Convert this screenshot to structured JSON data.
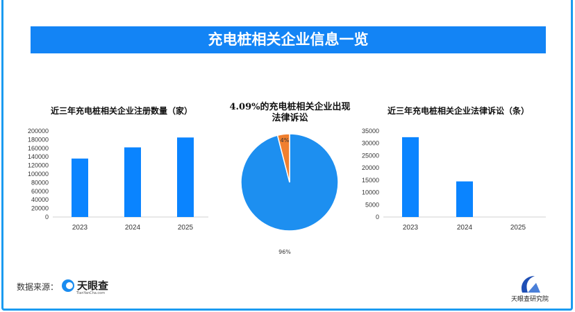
{
  "banner_title": "充电桩相关企业信息一览",
  "colors": {
    "bar": "#0a84ff",
    "pie_main": "#1d8ff0",
    "pie_minor": "#f07f2e",
    "banner": "#1384f5"
  },
  "chart_data": [
    {
      "type": "bar",
      "title": "近三年充电桩相关企业注册数量（家）",
      "categories": [
        "2023",
        "2024",
        "2025"
      ],
      "values": [
        136000,
        162000,
        185000
      ],
      "ylim": [
        0,
        200000
      ],
      "yticks": [
        "0",
        "20000",
        "40000",
        "60000",
        "80000",
        "100000",
        "120000",
        "140000",
        "160000",
        "180000",
        "200000"
      ]
    },
    {
      "type": "pie",
      "title": "4.09%的充电桩相关企业出现法律诉讼",
      "values": [
        96,
        4
      ],
      "labels": [
        "96%",
        "4%"
      ]
    },
    {
      "type": "bar",
      "title": "近三年充电桩相关企业法律诉讼（条）",
      "categories": [
        "2023",
        "2024",
        "2025"
      ],
      "values": [
        32500,
        14500,
        0
      ],
      "ylim": [
        0,
        35000
      ],
      "yticks": [
        "0",
        "5000",
        "10000",
        "15000",
        "20000",
        "25000",
        "30000",
        "35000"
      ]
    }
  ],
  "footer": {
    "source_label": "数据来源：",
    "logo_name": "天眼查",
    "logo_sub": "TianYanCha.com",
    "institute": "天眼查研究院"
  }
}
